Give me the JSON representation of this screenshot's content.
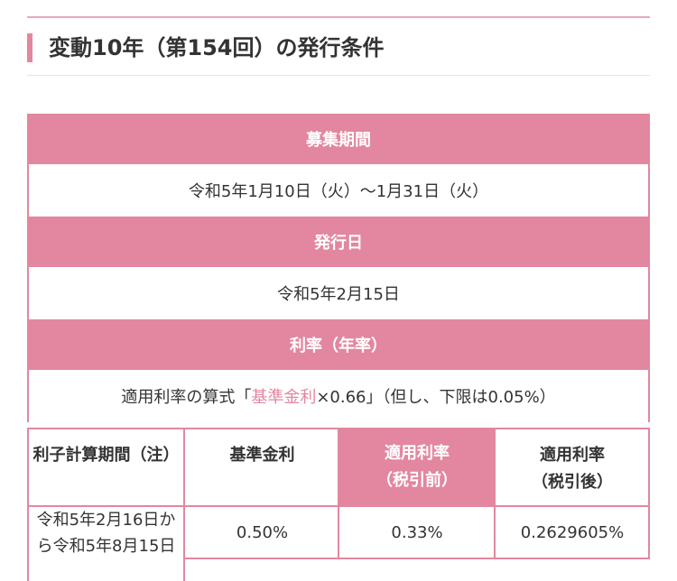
{
  "section": {
    "title": "変動10年（第154回）の発行条件"
  },
  "table": {
    "recruitment_period": {
      "header": "募集期間",
      "value": "令和5年1月10日（火）〜1月31日（火）"
    },
    "issue_date": {
      "header": "発行日",
      "value": "令和5年2月15日"
    },
    "interest_rate": {
      "header": "利率（年率）",
      "formula_prefix": "適用利率の算式「",
      "formula_highlight": "基準金利",
      "formula_suffix": "×0.66」（但し、下限は0.05%）"
    },
    "columns": {
      "period": "利子計算期間（注）",
      "base_rate": "基準金利",
      "applied_rate_pre_tax": [
        "適用利率",
        "（税引前）"
      ],
      "applied_rate_after_tax": [
        "適用利率",
        "（税引後）"
      ]
    },
    "rows": [
      {
        "period": [
          "令和5年2月16日か",
          "ら令和5年8月15日"
        ],
        "base_rate": "0.50%",
        "applied_rate_pre_tax": "0.33%",
        "applied_rate_after_tax": "0.2629605%"
      }
    ]
  },
  "colors": {
    "accent": "#e2879f",
    "top_rule": "#e6a9bd",
    "text": "#333333",
    "background": "#ffffff"
  }
}
